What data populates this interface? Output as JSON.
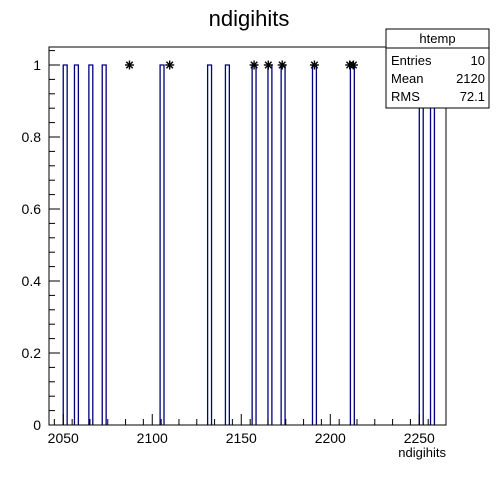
{
  "chart_data": {
    "type": "bar",
    "title": "ndigihits",
    "xlabel": "ndigihits",
    "ylabel": "",
    "xlim": [
      2042,
      2265
    ],
    "ylim": [
      0,
      1.05
    ],
    "x_ticks": [
      "2050",
      "2100",
      "2150",
      "2200",
      "2250"
    ],
    "x_tick_values": [
      2050,
      2100,
      2150,
      2200,
      2250
    ],
    "y_ticks": [
      "0",
      "0.2",
      "0.4",
      "0.6",
      "0.8",
      "1"
    ],
    "y_tick_values": [
      0,
      0.2,
      0.4,
      0.6,
      0.8,
      1
    ],
    "bin_width": 2.2,
    "bins": [
      {
        "x": 2051.1,
        "value": 1
      },
      {
        "x": 2057.4,
        "value": 1
      },
      {
        "x": 2065.5,
        "value": 1
      },
      {
        "x": 2073.0,
        "value": 1
      },
      {
        "x": 2105.5,
        "value": 1
      },
      {
        "x": 2132.2,
        "value": 1
      },
      {
        "x": 2142.2,
        "value": 1
      },
      {
        "x": 2157.2,
        "value": 1
      },
      {
        "x": 2166.1,
        "value": 1
      },
      {
        "x": 2173.5,
        "value": 1
      },
      {
        "x": 2191.1,
        "value": 1
      },
      {
        "x": 2212.4,
        "value": 1
      },
      {
        "x": 2251.1,
        "value": 1
      },
      {
        "x": 2257.4,
        "value": 1
      }
    ],
    "markers": [
      {
        "x": 2087.2,
        "value": 1
      },
      {
        "x": 2109.8,
        "value": 1
      },
      {
        "x": 2157.2,
        "value": 1
      },
      {
        "x": 2165.2,
        "value": 1
      },
      {
        "x": 2173.0,
        "value": 1
      },
      {
        "x": 2191.1,
        "value": 1
      },
      {
        "x": 2210.9,
        "value": 1
      },
      {
        "x": 2213.0,
        "value": 1
      }
    ],
    "colors": {
      "histogram": "#000080",
      "frame": "#000000",
      "background": "#ffffff"
    }
  },
  "stats": {
    "name": "htemp",
    "rows": [
      {
        "label": "Entries",
        "value": "10"
      },
      {
        "label": "Mean",
        "value": "2120"
      },
      {
        "label": "RMS",
        "value": "72.1"
      }
    ]
  }
}
